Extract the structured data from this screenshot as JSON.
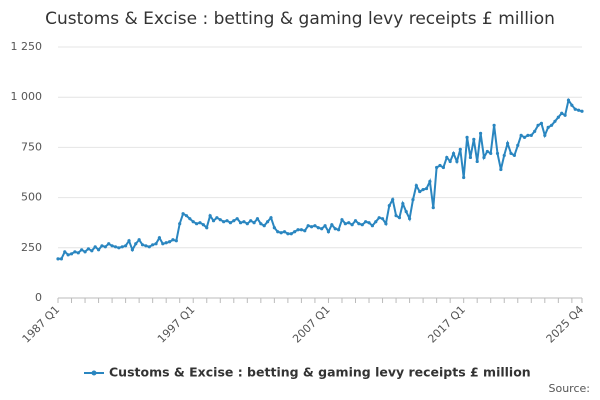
{
  "chart_data": {
    "type": "line",
    "title": "Customs & Excise : betting & gaming levy receipts £ million",
    "source": "Source:",
    "categories": [
      "1987 Q1",
      null,
      null,
      null,
      null,
      null,
      null,
      null,
      null,
      null,
      null,
      null,
      null,
      null,
      null,
      null,
      null,
      null,
      null,
      null,
      null,
      null,
      null,
      null,
      null,
      null,
      null,
      null,
      null,
      null,
      null,
      null,
      null,
      null,
      null,
      null,
      null,
      null,
      null,
      null,
      "1997 Q1",
      null,
      null,
      null,
      null,
      null,
      null,
      null,
      null,
      null,
      null,
      null,
      null,
      null,
      null,
      null,
      null,
      null,
      null,
      null,
      null,
      null,
      null,
      null,
      null,
      null,
      null,
      null,
      null,
      null,
      null,
      null,
      null,
      null,
      null,
      null,
      null,
      null,
      null,
      null,
      "2007 Q1",
      null,
      null,
      null,
      null,
      null,
      null,
      null,
      null,
      null,
      null,
      null,
      null,
      null,
      null,
      null,
      null,
      null,
      null,
      null,
      null,
      null,
      null,
      null,
      null,
      null,
      null,
      null,
      null,
      null,
      null,
      null,
      null,
      null,
      null,
      null,
      null,
      null,
      null,
      null,
      "2017 Q1",
      null,
      null,
      null,
      null,
      null,
      null,
      null,
      null,
      null,
      null,
      null,
      null,
      null,
      null,
      null,
      null,
      null,
      null,
      null,
      null,
      null,
      null,
      null,
      null,
      null,
      null,
      null,
      null,
      null,
      null,
      null,
      null,
      null,
      null,
      "2025 Q4"
    ],
    "series": [
      {
        "name": "Customs & Excise : betting & gaming levy receipts £ million",
        "color": "#2a86c0",
        "values": [
          195,
          195,
          230,
          215,
          220,
          230,
          225,
          240,
          230,
          245,
          235,
          255,
          240,
          260,
          255,
          270,
          260,
          255,
          250,
          255,
          260,
          285,
          240,
          270,
          290,
          265,
          260,
          255,
          265,
          270,
          300,
          270,
          275,
          280,
          290,
          285,
          370,
          420,
          410,
          395,
          380,
          370,
          375,
          365,
          350,
          410,
          385,
          400,
          390,
          380,
          385,
          375,
          385,
          395,
          375,
          380,
          370,
          385,
          375,
          395,
          370,
          360,
          380,
          400,
          350,
          330,
          325,
          330,
          320,
          320,
          330,
          340,
          340,
          335,
          360,
          355,
          360,
          350,
          345,
          360,
          330,
          365,
          345,
          340,
          390,
          370,
          375,
          365,
          385,
          370,
          365,
          380,
          375,
          360,
          380,
          400,
          395,
          370,
          460,
          490,
          410,
          400,
          470,
          430,
          395,
          490,
          560,
          530,
          540,
          545,
          580,
          450,
          650,
          660,
          650,
          700,
          680,
          720,
          680,
          740,
          600,
          800,
          700,
          790,
          680,
          820,
          700,
          730,
          720,
          860,
          720,
          640,
          710,
          770,
          720,
          710,
          760,
          810,
          800,
          810,
          810,
          830,
          860,
          870,
          810,
          850,
          860,
          880,
          900,
          920,
          910,
          985,
          960,
          940,
          935,
          930
        ]
      }
    ],
    "ylim": [
      0,
      1250
    ],
    "yticks": [
      0,
      250,
      500,
      750,
      {
        "value": 1000,
        "label": "1 000"
      },
      {
        "value": 1250,
        "label": "1 250"
      }
    ],
    "grid": true
  }
}
